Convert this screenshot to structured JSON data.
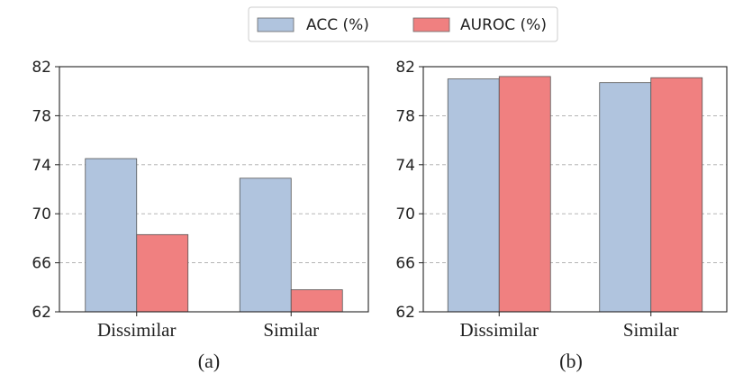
{
  "legend": {
    "items": [
      {
        "label": "ACC (%)",
        "color": "#b0c4de"
      },
      {
        "label": "AUROC (%)",
        "color": "#f08080"
      }
    ],
    "placement": "top-center"
  },
  "chart_data": [
    {
      "type": "bar",
      "caption": "(a)",
      "categories": [
        "Dissimilar",
        "Similar"
      ],
      "series": [
        {
          "name": "ACC (%)",
          "values": [
            74.5,
            72.9
          ]
        },
        {
          "name": "AUROC (%)",
          "values": [
            68.3,
            63.8
          ]
        }
      ],
      "ylim": [
        62,
        82
      ],
      "yticks": [
        "62",
        "66",
        "70",
        "74",
        "78",
        "82"
      ],
      "grid": true
    },
    {
      "type": "bar",
      "caption": "(b)",
      "categories": [
        "Dissimilar",
        "Similar"
      ],
      "series": [
        {
          "name": "ACC (%)",
          "values": [
            81.0,
            80.7
          ]
        },
        {
          "name": "AUROC (%)",
          "values": [
            81.2,
            81.1
          ]
        }
      ],
      "ylim": [
        62,
        82
      ],
      "yticks": [
        "62",
        "66",
        "70",
        "74",
        "78",
        "82"
      ],
      "grid": true
    }
  ]
}
